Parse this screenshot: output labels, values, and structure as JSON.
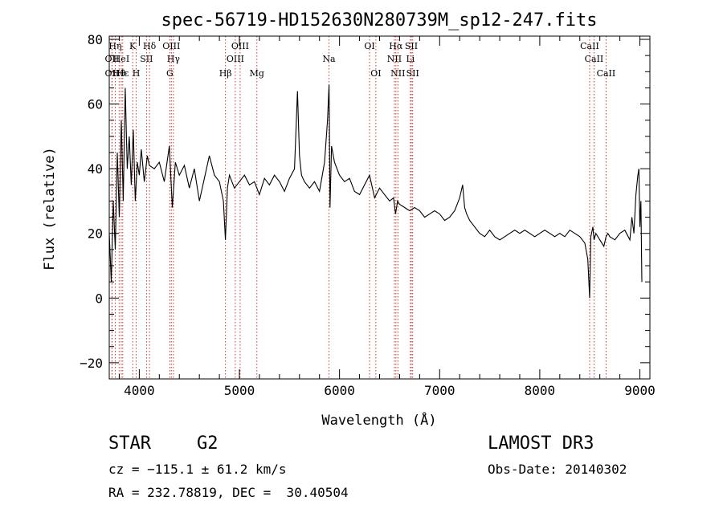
{
  "chart_data": {
    "type": "line",
    "title": "spec-56719-HD152630N280739M_sp12-247.fits",
    "xlabel": "Wavelength (Å)",
    "ylabel": "Flux (relative)",
    "xlim": [
      3700,
      9100
    ],
    "ylim": [
      -25,
      81
    ],
    "xticks": [
      4000,
      5000,
      6000,
      7000,
      8000,
      9000
    ],
    "yticks": [
      -20,
      0,
      20,
      40,
      60,
      80
    ],
    "grid": false,
    "series": [
      {
        "x": [
          3700,
          3720,
          3740,
          3760,
          3780,
          3800,
          3820,
          3840,
          3860,
          3880,
          3900,
          3920,
          3940,
          3960,
          3980,
          4000,
          4020,
          4050,
          4080,
          4100,
          4150,
          4200,
          4250,
          4300,
          4330,
          4360,
          4400,
          4450,
          4500,
          4550,
          4600,
          4650,
          4700,
          4750,
          4800,
          4840,
          4860,
          4880,
          4900,
          4950,
          5000,
          5050,
          5100,
          5150,
          5200,
          5250,
          5300,
          5350,
          5400,
          5450,
          5500,
          5550,
          5580,
          5600,
          5620,
          5650,
          5700,
          5750,
          5800,
          5850,
          5880,
          5895,
          5905,
          5920,
          5950,
          6000,
          6050,
          6100,
          6150,
          6200,
          6250,
          6300,
          6350,
          6400,
          6450,
          6500,
          6540,
          6560,
          6580,
          6600,
          6650,
          6700,
          6750,
          6800,
          6850,
          6900,
          6950,
          7000,
          7050,
          7100,
          7150,
          7200,
          7230,
          7250,
          7270,
          7300,
          7350,
          7400,
          7450,
          7500,
          7550,
          7600,
          7650,
          7700,
          7750,
          7800,
          7850,
          7900,
          7950,
          8000,
          8050,
          8100,
          8150,
          8200,
          8250,
          8300,
          8350,
          8400,
          8450,
          8480,
          8498,
          8510,
          8530,
          8542,
          8560,
          8600,
          8640,
          8662,
          8680,
          8700,
          8750,
          8800,
          8850,
          8900,
          8920,
          8940,
          8960,
          8980,
          8990,
          9000,
          9010,
          9020
        ],
        "y": [
          20,
          5,
          30,
          15,
          45,
          25,
          55,
          30,
          65,
          40,
          50,
          35,
          52,
          30,
          42,
          38,
          46,
          36,
          44,
          41,
          40,
          42,
          36,
          47,
          28,
          42,
          38,
          41,
          34,
          40,
          30,
          37,
          44,
          38,
          36,
          30,
          18,
          34,
          38,
          34,
          36,
          38,
          35,
          36,
          32,
          37,
          35,
          38,
          36,
          33,
          37,
          40,
          64,
          44,
          38,
          36,
          34,
          36,
          33,
          42,
          55,
          66,
          28,
          47,
          42,
          38,
          36,
          37,
          33,
          32,
          35,
          38,
          31,
          34,
          32,
          30,
          31,
          26,
          30,
          29,
          28,
          27,
          28,
          27,
          25,
          26,
          27,
          26,
          24,
          25,
          27,
          31,
          35,
          28,
          26,
          24,
          22,
          20,
          19,
          21,
          19,
          18,
          19,
          20,
          21,
          20,
          21,
          20,
          19,
          20,
          21,
          20,
          19,
          20,
          19,
          21,
          20,
          19,
          17,
          12,
          0,
          19,
          22,
          18,
          20,
          18,
          16,
          19,
          20,
          19,
          18,
          20,
          21,
          18,
          25,
          20,
          32,
          38,
          40,
          22,
          30,
          5
        ],
        "color": "#000000"
      }
    ],
    "lines": [
      {
        "label": "OII",
        "x": 3727,
        "row": 2
      },
      {
        "label": "OII",
        "x": 3727,
        "row": 3
      },
      {
        "label": "Hη",
        "x": 3760,
        "row": 1
      },
      {
        "label": "Hθ",
        "x": 3798,
        "row": 3
      },
      {
        "label": "HeI",
        "x": 3820,
        "row": 2
      },
      {
        "label": "Hε",
        "x": 3835,
        "row": 3
      },
      {
        "label": "K",
        "x": 3934,
        "row": 1
      },
      {
        "label": "H",
        "x": 3969,
        "row": 3
      },
      {
        "label": "SII",
        "x": 4072,
        "row": 2
      },
      {
        "label": "Hδ",
        "x": 4102,
        "row": 1
      },
      {
        "label": "OIII",
        "x": 4320,
        "row": 1
      },
      {
        "label": "Hγ",
        "x": 4341,
        "row": 2
      },
      {
        "label": "G",
        "x": 4305,
        "row": 3
      },
      {
        "label": "Hβ",
        "x": 4861,
        "row": 3
      },
      {
        "label": "OIII",
        "x": 4959,
        "row": 2
      },
      {
        "label": "OIII",
        "x": 5007,
        "row": 1
      },
      {
        "label": "Mg",
        "x": 5175,
        "row": 3
      },
      {
        "label": "Na",
        "x": 5894,
        "row": 2
      },
      {
        "label": "OI",
        "x": 6300,
        "row": 1
      },
      {
        "label": "OI",
        "x": 6363,
        "row": 3
      },
      {
        "label": "NII",
        "x": 6548,
        "row": 2
      },
      {
        "label": "NII",
        "x": 6583,
        "row": 3
      },
      {
        "label": "Hα",
        "x": 6563,
        "row": 1
      },
      {
        "label": "SII",
        "x": 6717,
        "row": 1
      },
      {
        "label": "Li",
        "x": 6708,
        "row": 2
      },
      {
        "label": "SII",
        "x": 6731,
        "row": 3
      },
      {
        "label": "CaII",
        "x": 8498,
        "row": 1
      },
      {
        "label": "CaII",
        "x": 8542,
        "row": 2
      },
      {
        "label": "CaII",
        "x": 8662,
        "row": 3
      }
    ],
    "line_color": "#cc0000"
  },
  "info": {
    "object_class": "STAR",
    "subclass": "G2",
    "survey": "LAMOST DR3",
    "redshift": "cz = −115.1 ± 61.2 km/s",
    "obs_date": "Obs-Date: 20140302",
    "coords": "RA = 232.78819, DEC =  30.40504"
  }
}
